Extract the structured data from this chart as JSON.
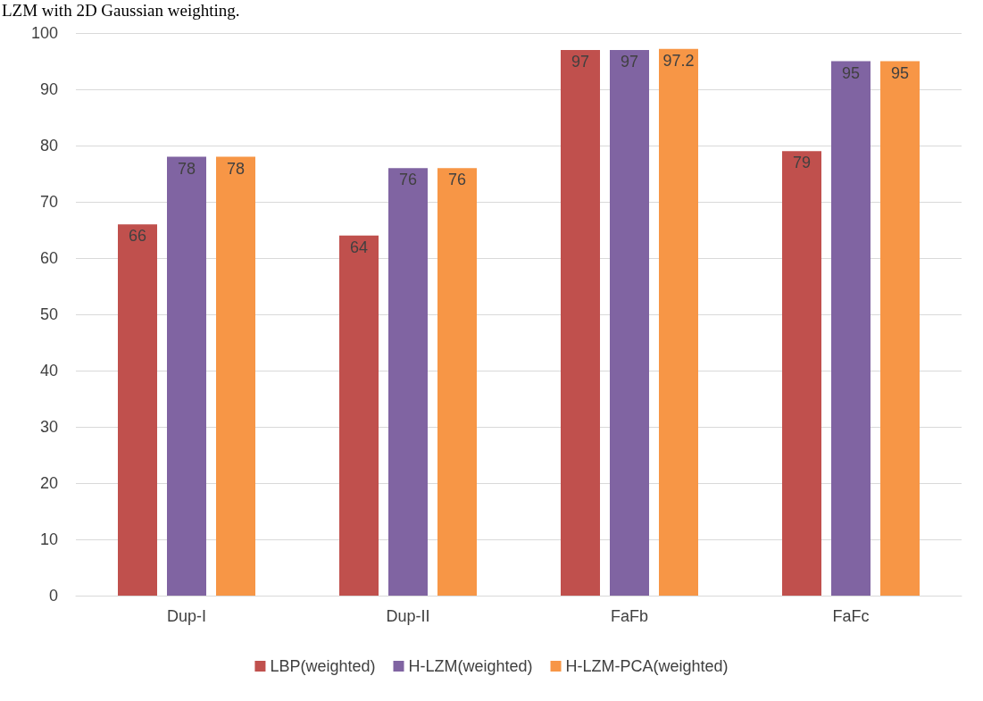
{
  "chart_data": {
    "type": "bar",
    "annotations": [
      "LZM with 2D Gaussian weighting."
    ],
    "categories": [
      "Dup-I",
      "Dup-II",
      "FaFb",
      "FaFc"
    ],
    "series": [
      {
        "name": "LBP(weighted)",
        "color": "#c0504d",
        "values": [
          66,
          64,
          97,
          79
        ]
      },
      {
        "name": "H-LZM(weighted)",
        "color": "#8064a2",
        "values": [
          78,
          76,
          97,
          95
        ]
      },
      {
        "name": "H-LZM-PCA(weighted)",
        "color": "#f79646",
        "values": [
          78,
          76,
          97.2,
          95
        ]
      }
    ],
    "ylim": [
      0,
      100
    ],
    "yticks": [
      0,
      10,
      20,
      30,
      40,
      50,
      60,
      70,
      80,
      90,
      100
    ],
    "grid": "y",
    "legend": "bottom",
    "data_labels": true
  }
}
